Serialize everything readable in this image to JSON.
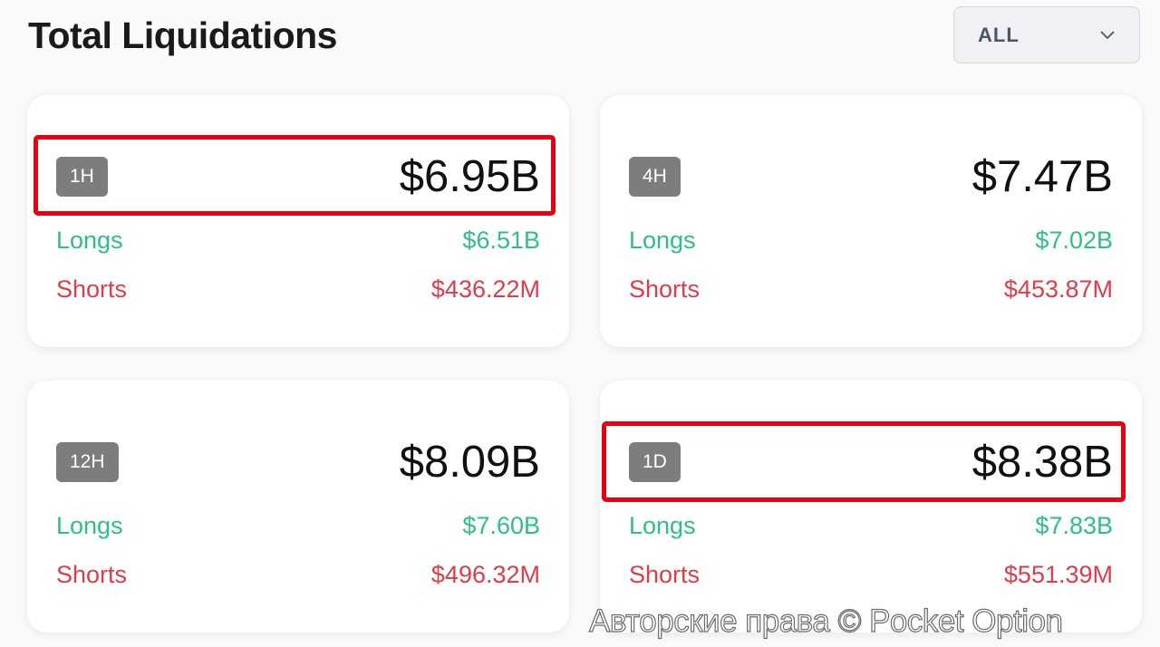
{
  "header": {
    "title": "Total Liquidations"
  },
  "filter": {
    "selected": "ALL",
    "icon": "chevron-down-icon"
  },
  "colors": {
    "longs": "#2dbf86",
    "shorts": "#de3c4b",
    "highlight": "#e60012",
    "badge": "#7d7d7d"
  },
  "cards": [
    {
      "period": "1H",
      "total": "$6.95B",
      "longs_label": "Longs",
      "longs": "$6.51B",
      "shorts_label": "Shorts",
      "shorts": "$436.22M",
      "highlighted": true
    },
    {
      "period": "4H",
      "total": "$7.47B",
      "longs_label": "Longs",
      "longs": "$7.02B",
      "shorts_label": "Shorts",
      "shorts": "$453.87M",
      "highlighted": false
    },
    {
      "period": "12H",
      "total": "$8.09B",
      "longs_label": "Longs",
      "longs": "$7.60B",
      "shorts_label": "Shorts",
      "shorts": "$496.32M",
      "highlighted": false
    },
    {
      "period": "1D",
      "total": "$8.38B",
      "longs_label": "Longs",
      "longs": "$7.83B",
      "shorts_label": "Shorts",
      "shorts": "$551.39M",
      "highlighted": true
    }
  ],
  "watermark": "Авторские права © Pocket Option"
}
